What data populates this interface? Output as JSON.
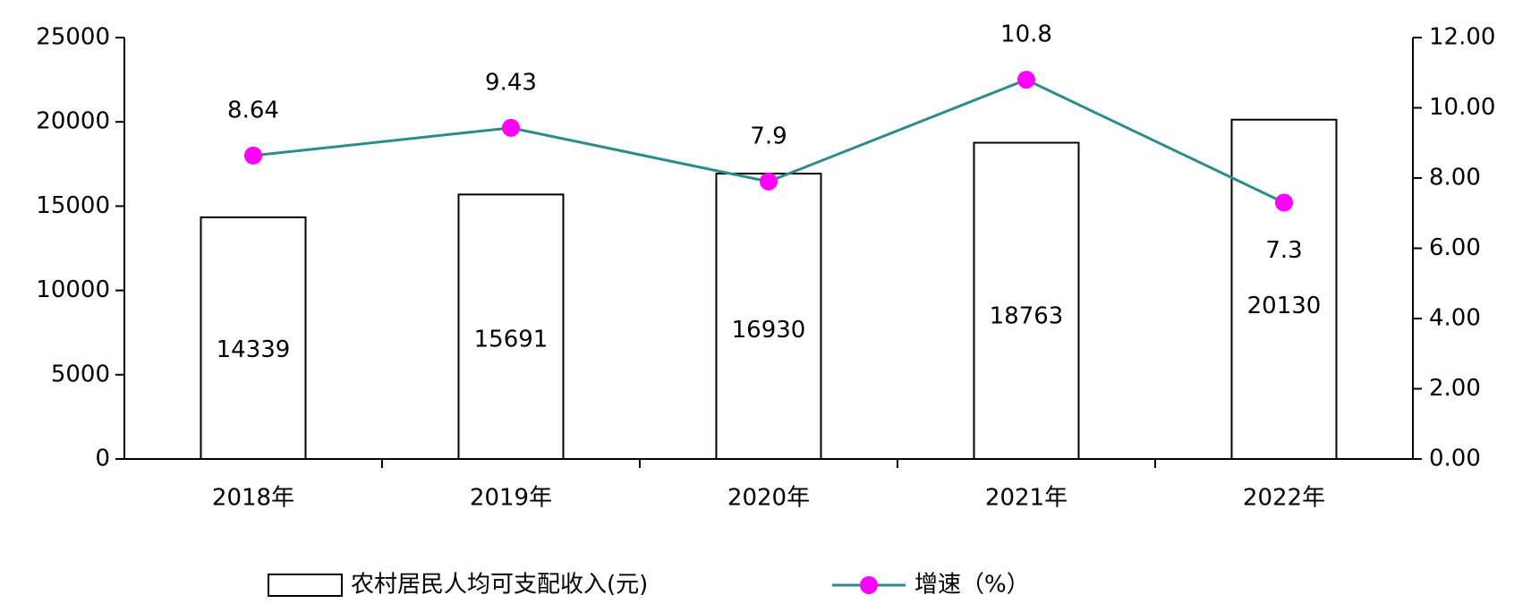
{
  "chart_data": {
    "type": "bar",
    "categories": [
      "2018年",
      "2019年",
      "2020年",
      "2021年",
      "2022年"
    ],
    "series": [
      {
        "name": "农村居民人均可支配收入(元)",
        "color": "#ffffff",
        "values": [
          14339,
          15691,
          16930,
          18763,
          20130
        ]
      },
      {
        "name": "增速（%）",
        "type": "line",
        "axis": "y2",
        "color": "#2e8b8b",
        "marker_color": "#ff00ff",
        "values": [
          8.64,
          9.43,
          7.9,
          10.8,
          7.3
        ]
      }
    ],
    "ylim": [
      0,
      25000
    ],
    "yticks": [
      0,
      5000,
      10000,
      15000,
      20000,
      25000
    ],
    "y2lim": [
      0,
      12
    ],
    "y2ticks": [
      {
        "value": 0,
        "label": "0.00"
      },
      {
        "value": 2,
        "label": "2.00"
      },
      {
        "value": 4,
        "label": "4.00"
      },
      {
        "value": 6,
        "label": "6.00"
      },
      {
        "value": 8,
        "label": "8.00"
      },
      {
        "value": 10,
        "label": "10.00"
      },
      {
        "value": 12,
        "label": "12.00"
      }
    ],
    "legend": "bottom"
  }
}
